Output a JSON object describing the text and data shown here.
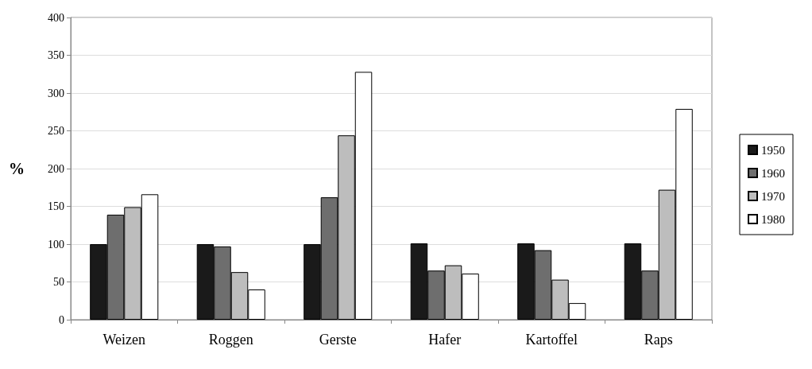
{
  "chart_data": {
    "type": "bar",
    "ylabel": "%",
    "categories": [
      "Weizen",
      "Roggen",
      "Gerste",
      "Hafer",
      "Kartoffel",
      "Raps"
    ],
    "series": [
      {
        "name": "1950",
        "color": "#1a1a1a",
        "values": [
          100,
          100,
          100,
          101,
          101,
          101
        ]
      },
      {
        "name": "1960",
        "color": "#6e6e6e",
        "values": [
          139,
          97,
          162,
          65,
          92,
          65
        ]
      },
      {
        "name": "1970",
        "color": "#bdbdbd",
        "values": [
          149,
          63,
          244,
          72,
          53,
          172
        ]
      },
      {
        "name": "1980",
        "color": "#ffffff",
        "values": [
          166,
          40,
          328,
          61,
          22,
          279
        ]
      }
    ],
    "ylim": [
      0,
      400
    ],
    "yticks": [
      0,
      50,
      100,
      150,
      200,
      250,
      300,
      350,
      400
    ],
    "grid": "y",
    "legend": "right"
  }
}
